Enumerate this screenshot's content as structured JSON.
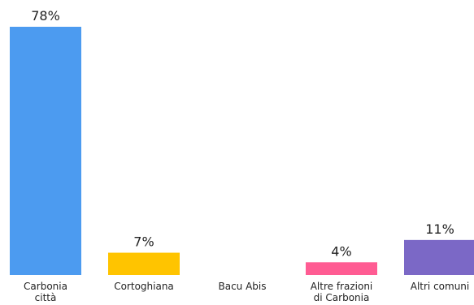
{
  "chart_data": {
    "type": "bar",
    "categories": [
      [
        "Carbonia",
        "città"
      ],
      [
        "Cortoghiana"
      ],
      [
        "Bacu Abis"
      ],
      [
        "Altre frazioni",
        "di Carbonia"
      ],
      [
        "Altri comuni"
      ]
    ],
    "values": [
      78,
      7,
      0,
      4,
      11
    ],
    "data_labels": [
      "78%",
      "7%",
      "",
      "4%",
      "11%"
    ],
    "colors": [
      "#4C9BF0",
      "#FFC400",
      "#9E9E9E",
      "#FF5C93",
      "#7B68C6"
    ],
    "title": "",
    "xlabel": "",
    "ylabel": "",
    "ylim": [
      0,
      78
    ],
    "grid": false,
    "legend": "none"
  }
}
